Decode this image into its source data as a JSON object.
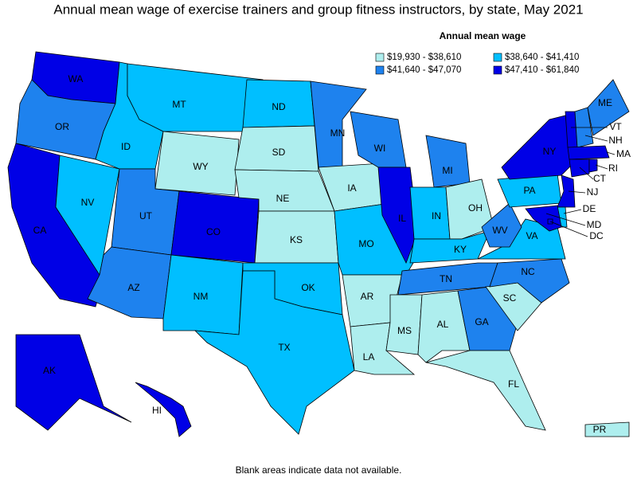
{
  "title": "Annual mean wage of exercise trainers and group fitness instructors, by state, May 2021",
  "legend": {
    "title": "Annual mean wage",
    "bins": [
      {
        "label": "$19,930 - $38,610",
        "color": "#aeeeee"
      },
      {
        "label": "$38,640 - $41,410",
        "color": "#00bfff"
      },
      {
        "label": "$41,640 - $47,070",
        "color": "#1e82ee"
      },
      {
        "label": "$47,410 - $61,840",
        "color": "#0000e6"
      }
    ]
  },
  "states": [
    {
      "abbr": "WA",
      "bin": 3
    },
    {
      "abbr": "OR",
      "bin": 2
    },
    {
      "abbr": "CA",
      "bin": 3
    },
    {
      "abbr": "NV",
      "bin": 1
    },
    {
      "abbr": "ID",
      "bin": 1
    },
    {
      "abbr": "MT",
      "bin": 1
    },
    {
      "abbr": "WY",
      "bin": 0
    },
    {
      "abbr": "UT",
      "bin": 2
    },
    {
      "abbr": "CO",
      "bin": 3
    },
    {
      "abbr": "AZ",
      "bin": 2
    },
    {
      "abbr": "NM",
      "bin": 1
    },
    {
      "abbr": "ND",
      "bin": 1
    },
    {
      "abbr": "SD",
      "bin": 0
    },
    {
      "abbr": "NE",
      "bin": 0
    },
    {
      "abbr": "KS",
      "bin": 0
    },
    {
      "abbr": "OK",
      "bin": 1
    },
    {
      "abbr": "TX",
      "bin": 1
    },
    {
      "abbr": "MN",
      "bin": 2
    },
    {
      "abbr": "IA",
      "bin": 0
    },
    {
      "abbr": "MO",
      "bin": 1
    },
    {
      "abbr": "AR",
      "bin": 0
    },
    {
      "abbr": "LA",
      "bin": 0
    },
    {
      "abbr": "WI",
      "bin": 2
    },
    {
      "abbr": "IL",
      "bin": 3
    },
    {
      "abbr": "MI",
      "bin": 2
    },
    {
      "abbr": "IN",
      "bin": 1
    },
    {
      "abbr": "OH",
      "bin": 0
    },
    {
      "abbr": "KY",
      "bin": 1
    },
    {
      "abbr": "TN",
      "bin": 2
    },
    {
      "abbr": "MS",
      "bin": 0
    },
    {
      "abbr": "AL",
      "bin": 0
    },
    {
      "abbr": "GA",
      "bin": 2
    },
    {
      "abbr": "FL",
      "bin": 0
    },
    {
      "abbr": "SC",
      "bin": 0
    },
    {
      "abbr": "NC",
      "bin": 2
    },
    {
      "abbr": "VA",
      "bin": 1
    },
    {
      "abbr": "WV",
      "bin": 2
    },
    {
      "abbr": "PA",
      "bin": 1
    },
    {
      "abbr": "NY",
      "bin": 3
    },
    {
      "abbr": "VT",
      "bin": 3
    },
    {
      "abbr": "NH",
      "bin": 2
    },
    {
      "abbr": "ME",
      "bin": 2
    },
    {
      "abbr": "MA",
      "bin": 3
    },
    {
      "abbr": "CT",
      "bin": 3
    },
    {
      "abbr": "RI",
      "bin": 3
    },
    {
      "abbr": "NJ",
      "bin": 3
    },
    {
      "abbr": "DE",
      "bin": 1
    },
    {
      "abbr": "MD",
      "bin": 3
    },
    {
      "abbr": "DC",
      "bin": 3
    },
    {
      "abbr": "AK",
      "bin": 3
    },
    {
      "abbr": "HI",
      "bin": 3
    },
    {
      "abbr": "PR",
      "bin": 0
    }
  ],
  "footnote": "Blank areas indicate data not available."
}
